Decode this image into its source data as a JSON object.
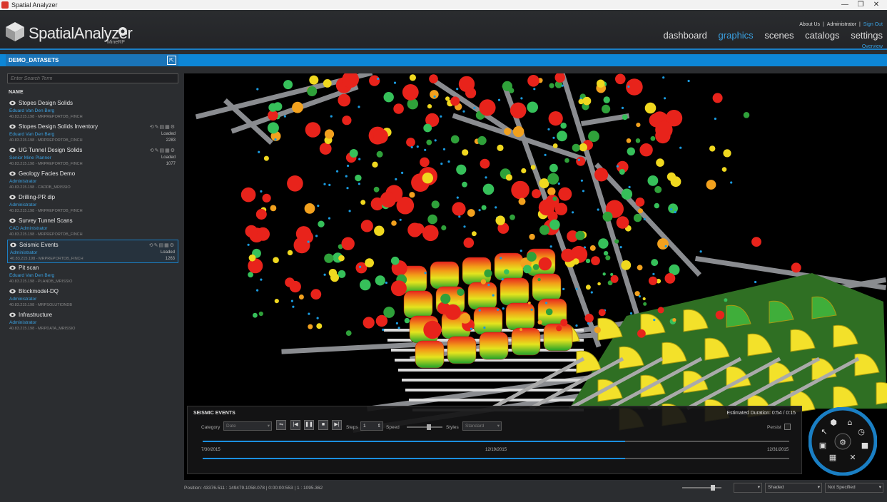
{
  "window": {
    "title": "Spatial Analyzer",
    "minimize": "—",
    "maximize": "❐",
    "close": "✕"
  },
  "brand": {
    "name": "SpatialAnalyzer",
    "sub": "MineRP"
  },
  "toplinks": {
    "about": "About Us",
    "sep1": "|",
    "user": "Administrator",
    "sep2": "|",
    "signout": "Sign Out"
  },
  "nav": [
    {
      "label": "dashboard",
      "active": false
    },
    {
      "label": "graphics",
      "active": true
    },
    {
      "label": "scenes",
      "active": false
    },
    {
      "label": "catalogs",
      "active": false
    },
    {
      "label": "settings",
      "active": false
    }
  ],
  "overview": "Overview",
  "dataset_tab": {
    "label": "DEMO_DATASETS",
    "expand_icon": "expand-icon"
  },
  "sidebar": {
    "search_placeholder": "Enter Search Term",
    "column": "NAME",
    "items": [
      {
        "name": "Stopes Design Solids",
        "owner": "Eduard Van Den Berg",
        "server": "40.83.215.198 - MRPREPORTDB_FINCH",
        "status": "",
        "count": "",
        "tools": "",
        "selected": false
      },
      {
        "name": "Stopes Design Solids Inventory",
        "owner": "Eduard Van Den Berg",
        "server": "40.83.215.198 - MRPREPORTDB_FINCH",
        "status": "Loaded",
        "count": "2283",
        "tools": "⟲✎▤▦⚙",
        "selected": false
      },
      {
        "name": "UG Tunnel Design Solids",
        "owner": "Senior Mine Planner",
        "server": "40.83.215.198 - MRPREPORTDB_FINCH",
        "status": "Loaded",
        "count": "1077",
        "tools": "⟲✎▤▦⚙",
        "selected": false
      },
      {
        "name": "Geology Facies Demo",
        "owner": "Administrator",
        "server": "40.83.215.198 - CADDB_MRISSIO",
        "status": "",
        "count": "",
        "tools": "",
        "selected": false
      },
      {
        "name": "Drilling-PR dip",
        "owner": "Administrator",
        "server": "40.83.215.198 - MRPREPORTDB_FINCH",
        "status": "",
        "count": "",
        "tools": "",
        "selected": false
      },
      {
        "name": "Survey Tunnel Scans",
        "owner": "CAD Administrator",
        "server": "40.83.215.198 - MRPREPORTDB_FINCH",
        "status": "",
        "count": "",
        "tools": "",
        "selected": false
      },
      {
        "name": "Seismic Events",
        "owner": "Administrator",
        "server": "40.83.215.198 - MRPREPORTDB_FINCH",
        "status": "Loaded",
        "count": "1263",
        "tools": "⟲✎▤▦⚙",
        "selected": true
      },
      {
        "name": "Pit scan",
        "owner": "Eduard Van Den Berg",
        "server": "40.83.215.198 - PLANDB_MRISSIO",
        "status": "",
        "count": "",
        "tools": "",
        "selected": false
      },
      {
        "name": "Blockmodel-DQ",
        "owner": "Administrator",
        "server": "40.83.215.198 - MRPSOLUTIONDB",
        "status": "",
        "count": "",
        "tools": "",
        "selected": false
      },
      {
        "name": "Infrastructure",
        "owner": "Administrator",
        "server": "40.83.215.198 - MRPDATA_MRISSIO",
        "status": "",
        "count": "",
        "tools": "",
        "selected": false
      }
    ]
  },
  "events_panel": {
    "title": "SEISMIC EVENTS",
    "duration": "Estimated Duration: 0:54 / 0:15",
    "category_label": "Category",
    "category_value": "Date",
    "steps_label": "Steps",
    "steps_value": "1",
    "speed_label": "Speed",
    "styles_label": "Styles",
    "styles_value": "Standard",
    "persist_label": "Persist",
    "start_date": "7/30/2015",
    "mid_date": "12/19/2015",
    "end_date": "12/31/2015",
    "progress": 0.72,
    "buttons": [
      "⇋",
      "|◀",
      "❚❚",
      "■",
      "▶|"
    ]
  },
  "statusbar": {
    "position": "Position: 43376.511 : 149479.1058.078 | 0:00:00:553 | 1 : 1095.362",
    "shading": "Shaded",
    "spec": "Not Specified"
  }
}
